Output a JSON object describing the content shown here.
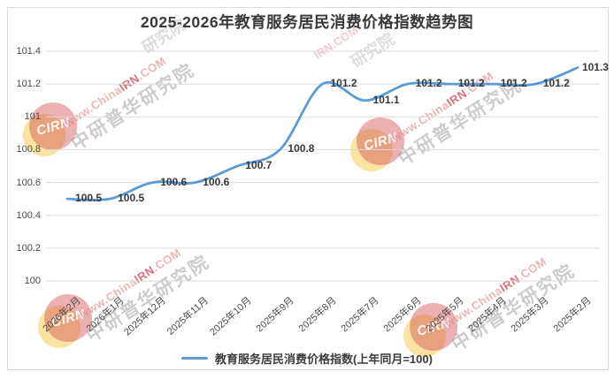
{
  "title": "2025-2026年教育服务居民消费价格指数趋势图",
  "chart_data": {
    "type": "line",
    "title": "2025-2026年教育服务居民消费价格指数趋势图",
    "categories": [
      "2026年2月",
      "2026年1月",
      "2025年12月",
      "2025年11月",
      "2025年10月",
      "2025年9月",
      "2025年8月",
      "2025年7月",
      "2025年6月",
      "2025年5月",
      "2025年4月",
      "2025年3月",
      "2025年2月"
    ],
    "series": [
      {
        "name": "教育服务居民消费价格指数(上年同月=100)",
        "values": [
          100.5,
          100.5,
          100.6,
          100.6,
          100.7,
          100.8,
          101.2,
          101.1,
          101.2,
          101.2,
          101.2,
          101.2,
          101.3
        ]
      }
    ],
    "data_labels": [
      "100.5",
      "100.5",
      "100.6",
      "100.6",
      "100.7",
      "100.8",
      "101.2",
      "101.1",
      "101.2",
      "101.2",
      "101.2",
      "101.2",
      "101.3"
    ],
    "yticks": [
      "101.4",
      "101.2",
      "101",
      "100.8",
      "100.6",
      "100.4",
      "100.2",
      "100"
    ],
    "ylim": [
      100,
      101.4
    ],
    "ytick_step": 0.2,
    "grid": true,
    "smooth": true,
    "legend_position": "bottom",
    "xlabel": "",
    "ylabel": ""
  },
  "legend": {
    "label": "教育服务居民消费价格指数(上年同月=100)"
  },
  "watermark": {
    "url_prefix": "www.China",
    "url_highlight": "IRN",
    "url_suffix": ".COM",
    "brand": "中研普华研究院",
    "logo": "CIRN"
  },
  "colors": {
    "line": "#5B9BD5",
    "grid": "#d9d9d9",
    "frame_border": "#d9d9d9",
    "axis_text": "#4a4a4a",
    "data_label_text": "#383838",
    "title_text": "#383838",
    "watermark_red": "#ce4c58",
    "watermark_yellow": "#f7cd55",
    "watermark_gray": "#8e8e8e"
  }
}
